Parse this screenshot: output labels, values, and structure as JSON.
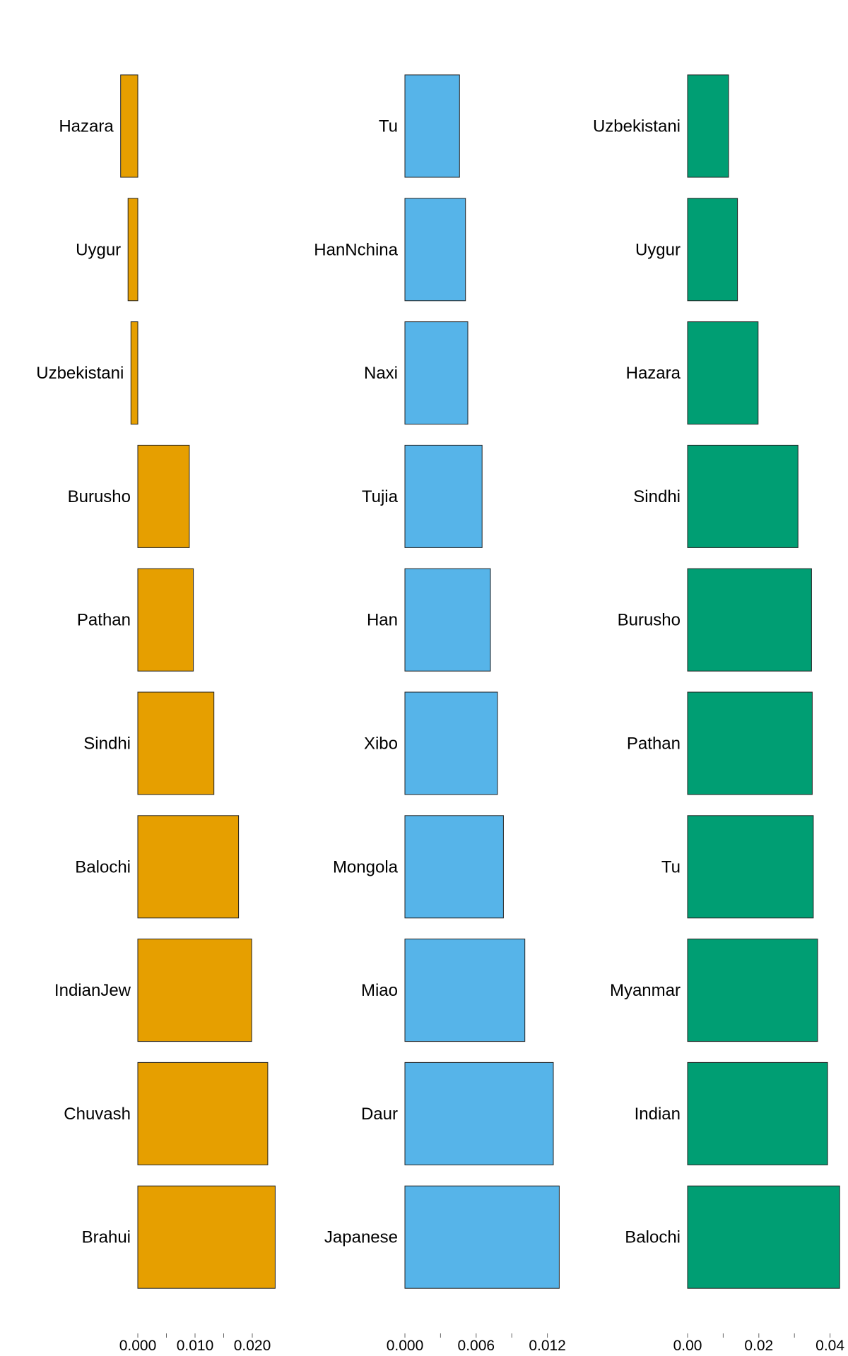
{
  "chart_data": [
    {
      "type": "bar",
      "orientation": "horizontal",
      "color": "#E69F00",
      "categories": [
        "Hazara",
        "Uygur",
        "Uzbekistani",
        "Burusho",
        "Pathan",
        "Sindhi",
        "Balochi",
        "IndianJew",
        "Chuvash",
        "Brahui"
      ],
      "values": [
        -0.003,
        -0.0017,
        -0.0012,
        0.009,
        0.0097,
        0.0133,
        0.0176,
        0.0199,
        0.0227,
        0.024
      ],
      "xticks": [
        0.0,
        0.01,
        0.02
      ],
      "xtick_labels": [
        "0.000",
        "0.010",
        "0.020"
      ]
    },
    {
      "type": "bar",
      "orientation": "horizontal",
      "color": "#56B4E9",
      "categories": [
        "Tu",
        "HanNchina",
        "Naxi",
        "Tujia",
        "Han",
        "Xibo",
        "Mongola",
        "Miao",
        "Daur",
        "Japanese"
      ],
      "values": [
        0.0046,
        0.0051,
        0.0053,
        0.0065,
        0.0072,
        0.0078,
        0.0083,
        0.0101,
        0.0125,
        0.013
      ],
      "xticks": [
        0.0,
        0.006,
        0.012
      ],
      "xtick_labels": [
        "0.000",
        "0.006",
        "0.012"
      ]
    },
    {
      "type": "bar",
      "orientation": "horizontal",
      "color": "#009E73",
      "categories": [
        "Uzbekistani",
        "Uygur",
        "Hazara",
        "Sindhi",
        "Burusho",
        "Pathan",
        "Tu",
        "Myanmar",
        "Indian",
        "Balochi"
      ],
      "values": [
        0.0115,
        0.014,
        0.0198,
        0.031,
        0.0348,
        0.035,
        0.0353,
        0.0365,
        0.0393,
        0.0427
      ],
      "xticks": [
        0.0,
        0.02,
        0.04
      ],
      "xtick_labels": [
        "0.00",
        "0.02",
        "0.04"
      ]
    }
  ]
}
